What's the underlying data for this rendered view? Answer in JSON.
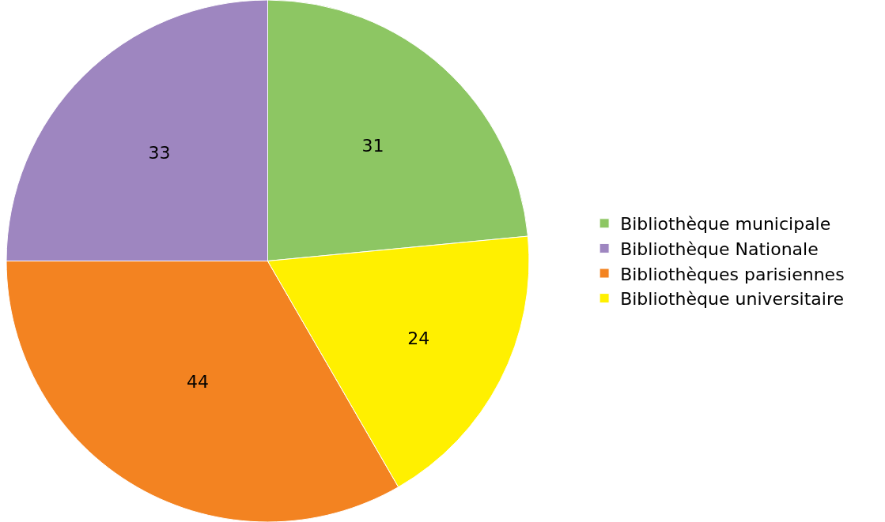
{
  "chart_data": {
    "type": "pie",
    "categories": [
      "Bibliothèque municipale",
      "Bibliothèque Nationale",
      "Bibliothèques parisiennes",
      "Bibliothèque universitaire"
    ],
    "values": [
      31,
      33,
      44,
      24
    ],
    "colors": [
      "#8dc663",
      "#9e86c0",
      "#f38321",
      "#fff000"
    ],
    "data_labels": true,
    "legend": "right"
  }
}
